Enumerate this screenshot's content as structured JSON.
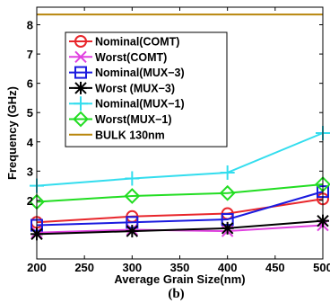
{
  "chart_data": {
    "type": "line",
    "xlabel": "Average Grain Size(nm)",
    "ylabel": "Frequency (GHz)",
    "caption": "(b)",
    "xlim": [
      200,
      500
    ],
    "ylim": [
      0,
      8.6
    ],
    "x_ticks": [
      "200",
      "250",
      "300",
      "350",
      "400",
      "450",
      "500"
    ],
    "y_ticks": [
      "2",
      "3",
      "4",
      "5",
      "6",
      "7",
      "8"
    ],
    "legend_position": "upper-left",
    "x": [
      200,
      300,
      400,
      500
    ],
    "series": [
      {
        "name": "Nominal(COMT)",
        "values": [
          1.25,
          1.45,
          1.55,
          2.05
        ],
        "color": "#e8262b",
        "marker": "circle"
      },
      {
        "name": "Worst(COMT)",
        "values": [
          0.9,
          1.0,
          0.95,
          1.15
        ],
        "color": "#e040e0",
        "marker": "x"
      },
      {
        "name": "Nominal(MUX−3)",
        "values": [
          1.15,
          1.25,
          1.35,
          2.3
        ],
        "color": "#1a1adf",
        "marker": "square"
      },
      {
        "name": "Worst (MUX−3)",
        "values": [
          0.85,
          0.95,
          1.05,
          1.3
        ],
        "color": "#000000",
        "marker": "asterisk"
      },
      {
        "name": "Nominal(MUX−1)",
        "values": [
          2.5,
          2.75,
          2.95,
          4.3
        ],
        "color": "#33ddee",
        "marker": "plus"
      },
      {
        "name": "Worst(MUX−1)",
        "values": [
          1.95,
          2.15,
          2.25,
          2.55
        ],
        "color": "#22dd22",
        "marker": "diamond"
      },
      {
        "name": "BULK 130nm",
        "values": [
          8.35,
          8.35,
          8.35,
          8.35
        ],
        "color": "#b8860b",
        "marker": "none"
      }
    ]
  }
}
